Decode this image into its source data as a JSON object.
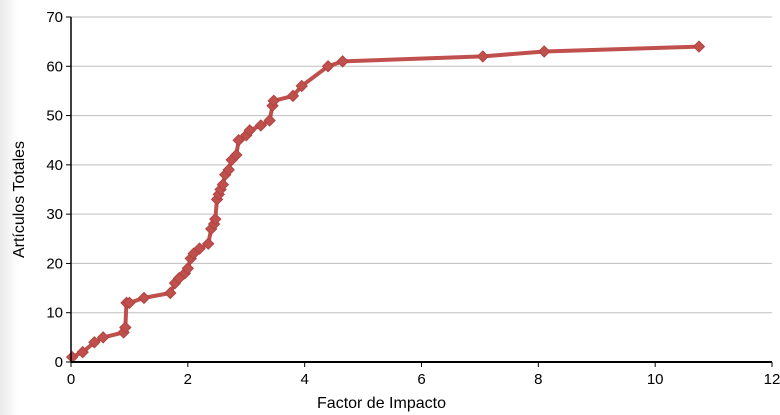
{
  "chart_data": {
    "type": "line",
    "title": "",
    "xlabel": "Factor de Impacto",
    "ylabel": "Artículos Totales",
    "xlim": [
      0,
      12
    ],
    "ylim": [
      0,
      70
    ],
    "xticks": [
      "0",
      "2",
      "4",
      "6",
      "8",
      "10",
      "12"
    ],
    "yticks": [
      "0",
      "10",
      "20",
      "30",
      "40",
      "50",
      "60",
      "70"
    ],
    "grid": "horizontal",
    "legend": "none",
    "marker": "diamond",
    "colors": {
      "series": "#c0504d",
      "marker_edge": "#b04340",
      "grid": "#bfbfbf",
      "axis": "#000000"
    },
    "series": [
      {
        "x": [
          0.02,
          0.2,
          0.4,
          0.55,
          0.9,
          0.93,
          0.95,
          1.0,
          1.25,
          1.7,
          1.78,
          1.85,
          1.95,
          2.0,
          2.05,
          2.1,
          2.2,
          2.35,
          2.4,
          2.45,
          2.47,
          2.5,
          2.53,
          2.56,
          2.6,
          2.64,
          2.7,
          2.75,
          2.83,
          2.87,
          3.0,
          3.06,
          3.25,
          3.4,
          3.45,
          3.47,
          3.8,
          3.95,
          4.4,
          4.65,
          7.05,
          8.1,
          10.75
        ],
        "y": [
          1,
          2,
          4,
          5,
          6,
          7,
          12,
          12,
          13,
          14,
          16,
          17,
          18,
          19,
          21,
          22,
          23,
          24,
          27,
          28,
          29,
          33,
          34,
          35,
          36,
          38,
          39,
          41,
          42,
          45,
          46,
          47,
          48,
          49,
          52,
          53,
          54,
          56,
          60,
          61,
          62,
          63,
          64
        ]
      }
    ]
  }
}
